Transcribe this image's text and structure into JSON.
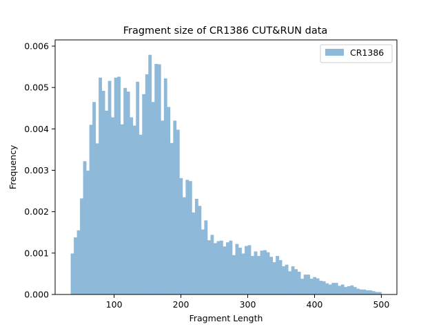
{
  "chart_data": {
    "type": "bar",
    "title": "Fragment size of CR1386 CUT&RUN data",
    "xlabel": "Fragment Length",
    "ylabel": "Frequency",
    "xlim": [
      11.7,
      523.3
    ],
    "ylim": [
      0,
      0.00615
    ],
    "xticks": [
      100,
      200,
      300,
      400,
      500
    ],
    "xtick_labels": [
      "100",
      "200",
      "300",
      "400",
      "500"
    ],
    "yticks": [
      0.0,
      0.001,
      0.002,
      0.003,
      0.004,
      0.005,
      0.006
    ],
    "ytick_labels": [
      "0.000",
      "0.001",
      "0.002",
      "0.003",
      "0.004",
      "0.005",
      "0.006"
    ],
    "grid": false,
    "legend_position": "top-right",
    "series": [
      {
        "name": "CR1386",
        "color": "#8fb9d9",
        "bin_start": 35,
        "bin_width": 4.65,
        "values": [
          0.00099,
          0.00138,
          0.00155,
          0.00232,
          0.00322,
          0.00299,
          0.0041,
          0.00465,
          0.00365,
          0.00524,
          0.00492,
          0.00444,
          0.00516,
          0.00428,
          0.00524,
          0.00526,
          0.00411,
          0.00499,
          0.0049,
          0.00428,
          0.00408,
          0.00514,
          0.00386,
          0.00484,
          0.00532,
          0.00579,
          0.00465,
          0.00557,
          0.00556,
          0.0042,
          0.00522,
          0.00453,
          0.00366,
          0.0042,
          0.00398,
          0.00281,
          0.00235,
          0.00277,
          0.00274,
          0.00198,
          0.00231,
          0.00214,
          0.00157,
          0.00179,
          0.00131,
          0.00144,
          0.00124,
          0.00129,
          0.0013,
          0.00116,
          0.00126,
          0.0013,
          0.00095,
          0.00122,
          0.00113,
          0.00099,
          0.00117,
          0.00119,
          0.00093,
          0.00104,
          0.00093,
          0.00106,
          0.00107,
          0.00102,
          0.00091,
          0.00078,
          0.00093,
          0.00083,
          0.00068,
          0.00072,
          0.00056,
          0.00068,
          0.00061,
          0.00055,
          0.00038,
          0.00048,
          0.00048,
          0.00038,
          0.00042,
          0.00039,
          0.00033,
          0.00032,
          0.00027,
          0.00024,
          0.00028,
          0.00028,
          0.00021,
          0.00024,
          0.00018,
          0.0002,
          0.00022,
          0.00018,
          0.00014,
          0.00012,
          0.00012,
          0.0001,
          0.0001,
          8e-05,
          6e-05,
          6e-05
        ]
      }
    ]
  }
}
